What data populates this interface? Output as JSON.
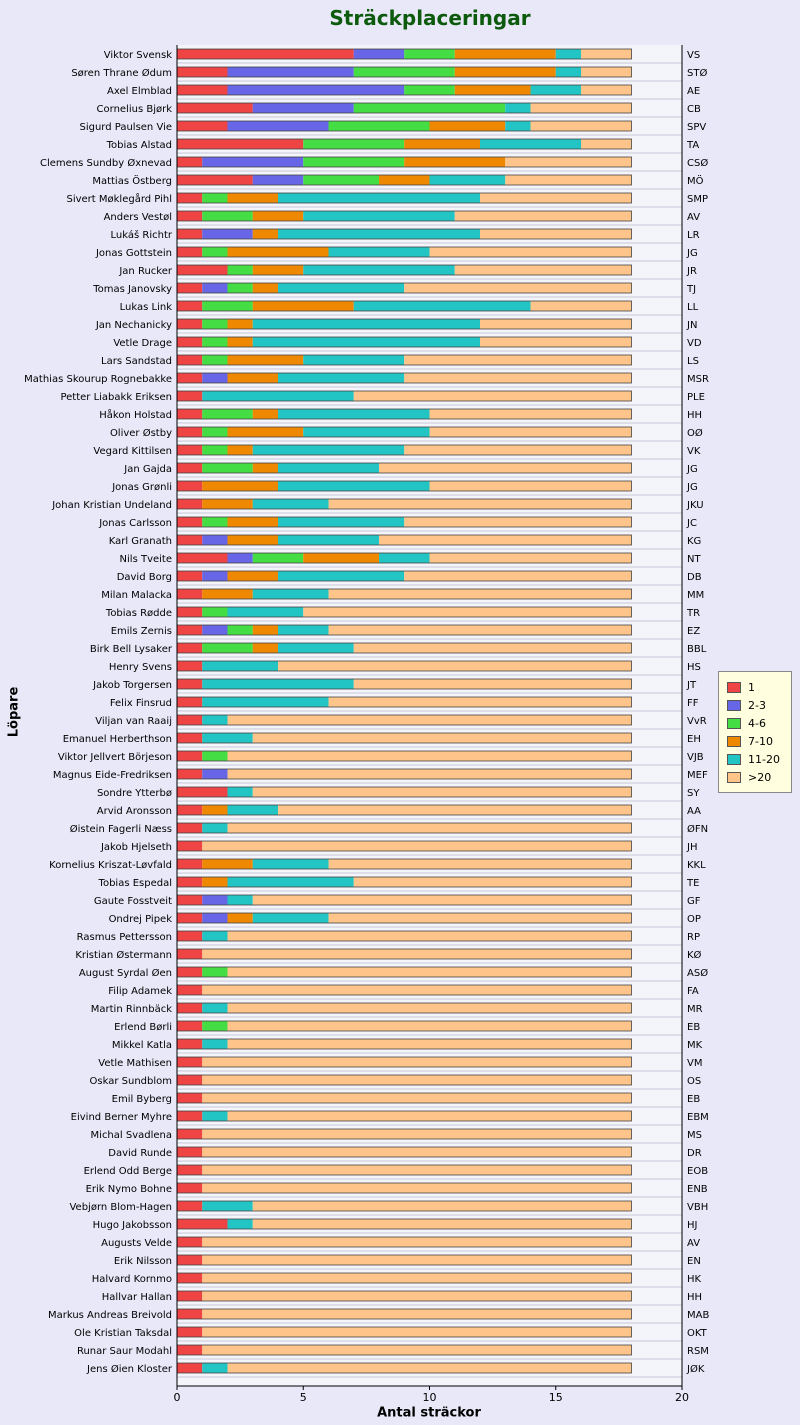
{
  "chart_data": {
    "type": "bar",
    "orientation": "horizontal",
    "stacked": true,
    "title": "Sträckplaceringar",
    "xlabel": "Antal sträckor",
    "ylabel": "Löpare",
    "xlim": [
      0,
      20
    ],
    "xticks": [
      "0",
      "5",
      "10",
      "15",
      "20"
    ],
    "legend_position": "right",
    "series": [
      {
        "name": "1",
        "color": "#ee4444"
      },
      {
        "name": "2-3",
        "color": "#6666e6"
      },
      {
        "name": "4-6",
        "color": "#44dd44"
      },
      {
        "name": "7-10",
        "color": "#ee8800"
      },
      {
        "name": "11-20",
        "color": "#22c4c4"
      },
      {
        "name": ">20",
        "color": "#ffc48a"
      }
    ],
    "rows": [
      {
        "name": "Viktor Svensk",
        "abbr": "VS",
        "values": [
          7,
          2,
          2,
          4,
          1,
          2
        ]
      },
      {
        "name": "Søren Thrane Ødum",
        "abbr": "STØ",
        "values": [
          2,
          5,
          4,
          4,
          1,
          2
        ]
      },
      {
        "name": "Axel Elmblad",
        "abbr": "AE",
        "values": [
          2,
          7,
          2,
          3,
          2,
          2
        ]
      },
      {
        "name": "Cornelius Bjørk",
        "abbr": "CB",
        "values": [
          3,
          4,
          6,
          0,
          1,
          4
        ]
      },
      {
        "name": "Sigurd Paulsen Vie",
        "abbr": "SPV",
        "values": [
          2,
          4,
          4,
          3,
          1,
          4
        ]
      },
      {
        "name": "Tobias Alstad",
        "abbr": "TA",
        "values": [
          5,
          0,
          4,
          3,
          4,
          2
        ]
      },
      {
        "name": "Clemens Sundby Øxnevad",
        "abbr": "CSØ",
        "values": [
          1,
          4,
          4,
          4,
          0,
          5
        ]
      },
      {
        "name": "Mattias Östberg",
        "abbr": "MÖ",
        "values": [
          3,
          2,
          3,
          2,
          3,
          5
        ]
      },
      {
        "name": "Sivert Møklegård Pihl",
        "abbr": "SMP",
        "values": [
          1,
          0,
          1,
          2,
          8,
          6
        ]
      },
      {
        "name": "Anders Vestøl",
        "abbr": "AV",
        "values": [
          1,
          0,
          2,
          2,
          6,
          7
        ]
      },
      {
        "name": "Lukáš Richtr",
        "abbr": "LR",
        "values": [
          1,
          2,
          0,
          1,
          8,
          6
        ]
      },
      {
        "name": "Jonas Gottstein",
        "abbr": "JG",
        "values": [
          1,
          0,
          1,
          4,
          4,
          8
        ]
      },
      {
        "name": "Jan Rucker",
        "abbr": "JR",
        "values": [
          2,
          0,
          1,
          2,
          6,
          7
        ]
      },
      {
        "name": "Tomas Janovsky",
        "abbr": "TJ",
        "values": [
          1,
          1,
          1,
          1,
          5,
          9
        ]
      },
      {
        "name": "Lukas Link",
        "abbr": "LL",
        "values": [
          1,
          0,
          2,
          4,
          7,
          4
        ]
      },
      {
        "name": "Jan Nechanicky",
        "abbr": "JN",
        "values": [
          1,
          0,
          1,
          1,
          9,
          6
        ]
      },
      {
        "name": "Vetle Drage",
        "abbr": "VD",
        "values": [
          1,
          0,
          1,
          1,
          9,
          6
        ]
      },
      {
        "name": "Lars Sandstad",
        "abbr": "LS",
        "values": [
          1,
          0,
          1,
          3,
          4,
          9
        ]
      },
      {
        "name": "Mathias Skourup Rognebakke",
        "abbr": "MSR",
        "values": [
          1,
          1,
          0,
          2,
          5,
          9
        ]
      },
      {
        "name": "Petter Liabakk Eriksen",
        "abbr": "PLE",
        "values": [
          1,
          0,
          0,
          0,
          6,
          11
        ]
      },
      {
        "name": "Håkon Holstad",
        "abbr": "HH",
        "values": [
          1,
          0,
          2,
          1,
          6,
          8
        ]
      },
      {
        "name": "Oliver Østby",
        "abbr": "OØ",
        "values": [
          1,
          0,
          1,
          3,
          5,
          8
        ]
      },
      {
        "name": "Vegard Kittilsen",
        "abbr": "VK",
        "values": [
          1,
          0,
          1,
          1,
          6,
          9
        ]
      },
      {
        "name": "Jan Gajda",
        "abbr": "JG",
        "values": [
          1,
          0,
          2,
          1,
          4,
          10
        ]
      },
      {
        "name": "Jonas Grønli",
        "abbr": "JG",
        "values": [
          1,
          0,
          0,
          3,
          6,
          8
        ]
      },
      {
        "name": "Johan Kristian Undeland",
        "abbr": "JKU",
        "values": [
          1,
          0,
          0,
          2,
          3,
          12
        ]
      },
      {
        "name": "Jonas Carlsson",
        "abbr": "JC",
        "values": [
          1,
          0,
          1,
          2,
          5,
          9
        ]
      },
      {
        "name": "Karl Granath",
        "abbr": "KG",
        "values": [
          1,
          1,
          0,
          2,
          4,
          10
        ]
      },
      {
        "name": "Nils Tveite",
        "abbr": "NT",
        "values": [
          2,
          1,
          2,
          3,
          2,
          8
        ]
      },
      {
        "name": "David Borg",
        "abbr": "DB",
        "values": [
          1,
          1,
          0,
          2,
          5,
          9
        ]
      },
      {
        "name": "Milan Malacka",
        "abbr": "MM",
        "values": [
          1,
          0,
          0,
          2,
          3,
          12
        ]
      },
      {
        "name": "Tobias Rødde",
        "abbr": "TR",
        "values": [
          1,
          0,
          1,
          0,
          3,
          13
        ]
      },
      {
        "name": "Emils Zernis",
        "abbr": "EZ",
        "values": [
          1,
          1,
          1,
          1,
          2,
          12
        ]
      },
      {
        "name": "Birk Bell Lysaker",
        "abbr": "BBL",
        "values": [
          1,
          0,
          2,
          1,
          3,
          11
        ]
      },
      {
        "name": "Henry Svens",
        "abbr": "HS",
        "values": [
          1,
          0,
          0,
          0,
          3,
          14
        ]
      },
      {
        "name": "Jakob Torgersen",
        "abbr": "JT",
        "values": [
          1,
          0,
          0,
          0,
          6,
          11
        ]
      },
      {
        "name": "Felix Finsrud",
        "abbr": "FF",
        "values": [
          1,
          0,
          0,
          0,
          5,
          12
        ]
      },
      {
        "name": "Viljan van Raaij",
        "abbr": "VvR",
        "values": [
          1,
          0,
          0,
          0,
          1,
          16
        ]
      },
      {
        "name": "Emanuel Herberthson",
        "abbr": "EH",
        "values": [
          1,
          0,
          0,
          0,
          2,
          15
        ]
      },
      {
        "name": "Viktor Jellvert Börjeson",
        "abbr": "VJB",
        "values": [
          1,
          0,
          1,
          0,
          0,
          16
        ]
      },
      {
        "name": "Magnus Eide-Fredriksen",
        "abbr": "MEF",
        "values": [
          1,
          1,
          0,
          0,
          0,
          16
        ]
      },
      {
        "name": "Sondre Ytterbø",
        "abbr": "SY",
        "values": [
          2,
          0,
          0,
          0,
          1,
          15
        ]
      },
      {
        "name": "Arvid Aronsson",
        "abbr": "AA",
        "values": [
          1,
          0,
          0,
          1,
          2,
          14
        ]
      },
      {
        "name": "Øistein Fagerli Næss",
        "abbr": "ØFN",
        "values": [
          1,
          0,
          0,
          0,
          1,
          16
        ]
      },
      {
        "name": "Jakob Hjelseth",
        "abbr": "JH",
        "values": [
          1,
          0,
          0,
          0,
          0,
          17
        ]
      },
      {
        "name": "Kornelius Kriszat-Løvfald",
        "abbr": "KKL",
        "values": [
          1,
          0,
          0,
          2,
          3,
          12
        ]
      },
      {
        "name": "Tobias Espedal",
        "abbr": "TE",
        "values": [
          1,
          0,
          0,
          1,
          5,
          11
        ]
      },
      {
        "name": "Gaute Fosstveit",
        "abbr": "GF",
        "values": [
          1,
          1,
          0,
          0,
          1,
          15
        ]
      },
      {
        "name": "Ondrej Pipek",
        "abbr": "OP",
        "values": [
          1,
          1,
          0,
          1,
          3,
          12
        ]
      },
      {
        "name": "Rasmus Pettersson",
        "abbr": "RP",
        "values": [
          1,
          0,
          0,
          0,
          1,
          16
        ]
      },
      {
        "name": "Kristian Østermann",
        "abbr": "KØ",
        "values": [
          1,
          0,
          0,
          0,
          0,
          17
        ]
      },
      {
        "name": "August Syrdal Øen",
        "abbr": "ASØ",
        "values": [
          1,
          0,
          1,
          0,
          0,
          16
        ]
      },
      {
        "name": "Filip Adamek",
        "abbr": "FA",
        "values": [
          1,
          0,
          0,
          0,
          0,
          17
        ]
      },
      {
        "name": "Martin Rinnbäck",
        "abbr": "MR",
        "values": [
          1,
          0,
          0,
          0,
          1,
          16
        ]
      },
      {
        "name": "Erlend Børli",
        "abbr": "EB",
        "values": [
          1,
          0,
          1,
          0,
          0,
          16
        ]
      },
      {
        "name": "Mikkel Katla",
        "abbr": "MK",
        "values": [
          1,
          0,
          0,
          0,
          1,
          16
        ]
      },
      {
        "name": "Vetle Mathisen",
        "abbr": "VM",
        "values": [
          1,
          0,
          0,
          0,
          0,
          17
        ]
      },
      {
        "name": "Oskar Sundblom",
        "abbr": "OS",
        "values": [
          1,
          0,
          0,
          0,
          0,
          17
        ]
      },
      {
        "name": "Emil Byberg",
        "abbr": "EB",
        "values": [
          1,
          0,
          0,
          0,
          0,
          17
        ]
      },
      {
        "name": "Eivind Berner Myhre",
        "abbr": "EBM",
        "values": [
          1,
          0,
          0,
          0,
          1,
          16
        ]
      },
      {
        "name": "Michal Svadlena",
        "abbr": "MS",
        "values": [
          1,
          0,
          0,
          0,
          0,
          17
        ]
      },
      {
        "name": "David Runde",
        "abbr": "DR",
        "values": [
          1,
          0,
          0,
          0,
          0,
          17
        ]
      },
      {
        "name": "Erlend Odd Berge",
        "abbr": "EOB",
        "values": [
          1,
          0,
          0,
          0,
          0,
          17
        ]
      },
      {
        "name": "Erik Nymo Bohne",
        "abbr": "ENB",
        "values": [
          1,
          0,
          0,
          0,
          0,
          17
        ]
      },
      {
        "name": "Vebjørn Blom-Hagen",
        "abbr": "VBH",
        "values": [
          1,
          0,
          0,
          0,
          2,
          15
        ]
      },
      {
        "name": "Hugo Jakobsson",
        "abbr": "HJ",
        "values": [
          2,
          0,
          0,
          0,
          1,
          15
        ]
      },
      {
        "name": "Augusts Velde",
        "abbr": "AV",
        "values": [
          1,
          0,
          0,
          0,
          0,
          17
        ]
      },
      {
        "name": "Erik Nilsson",
        "abbr": "EN",
        "values": [
          1,
          0,
          0,
          0,
          0,
          17
        ]
      },
      {
        "name": "Halvard Kornmo",
        "abbr": "HK",
        "values": [
          1,
          0,
          0,
          0,
          0,
          17
        ]
      },
      {
        "name": "Hallvar Hallan",
        "abbr": "HH",
        "values": [
          1,
          0,
          0,
          0,
          0,
          17
        ]
      },
      {
        "name": "Markus Andreas Breivold",
        "abbr": "MAB",
        "values": [
          1,
          0,
          0,
          0,
          0,
          17
        ]
      },
      {
        "name": "Ole Kristian Taksdal",
        "abbr": "OKT",
        "values": [
          1,
          0,
          0,
          0,
          0,
          17
        ]
      },
      {
        "name": "Runar Saur Modahl",
        "abbr": "RSM",
        "values": [
          1,
          0,
          0,
          0,
          0,
          17
        ]
      },
      {
        "name": "Jens Øien Kloster",
        "abbr": "JØK",
        "values": [
          1,
          0,
          0,
          0,
          1,
          16
        ]
      }
    ]
  }
}
